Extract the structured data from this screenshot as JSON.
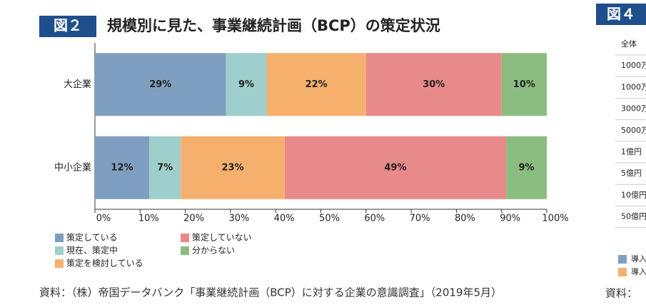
{
  "figure_label": "図２",
  "chart_data": {
    "type": "stacked-barh",
    "title": "規模別に見た、事業継続計画（BCP）の策定状況",
    "categories": [
      "大企業",
      "中小企業"
    ],
    "series": [
      {
        "name": "策定している",
        "color": "#7f9fc1",
        "values": [
          29,
          12
        ],
        "value_labels": [
          "29%",
          "12%"
        ]
      },
      {
        "name": "現在、策定中",
        "color": "#9fcfcc",
        "values": [
          9,
          7
        ],
        "value_labels": [
          "9%",
          "7%"
        ]
      },
      {
        "name": "策定を検討している",
        "color": "#f5b06e",
        "values": [
          22,
          23
        ],
        "value_labels": [
          "22%",
          "23%"
        ]
      },
      {
        "name": "策定していない",
        "color": "#e88a89",
        "values": [
          30,
          49
        ],
        "value_labels": [
          "30%",
          "49%"
        ]
      },
      {
        "name": "分からない",
        "color": "#8cbd80",
        "values": [
          10,
          9
        ],
        "value_labels": [
          "10%",
          "9%"
        ]
      }
    ],
    "xlim": [
      0,
      100
    ],
    "xticks": [
      {
        "value": 0,
        "label": "0%"
      },
      {
        "value": 10,
        "label": "10%"
      },
      {
        "value": 20,
        "label": "20%"
      },
      {
        "value": 30,
        "label": "30%"
      },
      {
        "value": 40,
        "label": "40%"
      },
      {
        "value": 50,
        "label": "50%"
      },
      {
        "value": 60,
        "label": "60%"
      },
      {
        "value": 70,
        "label": "70%"
      },
      {
        "value": 80,
        "label": "80%"
      },
      {
        "value": 90,
        "label": "90%"
      },
      {
        "value": 100,
        "label": "100%"
      }
    ]
  },
  "source": "資料：（株）帝国データバンク「事業継続計画（BCP）に対する企業の意識調査」（2019年5月）",
  "side_panel": {
    "figure_label": "図４",
    "rows": [
      "全体",
      "1000万",
      "1000万",
      "3000万",
      "5000万",
      "1億円",
      "5億円",
      "10億円",
      "50億円"
    ],
    "legend": [
      "導入",
      "導入"
    ],
    "source": "資料："
  }
}
